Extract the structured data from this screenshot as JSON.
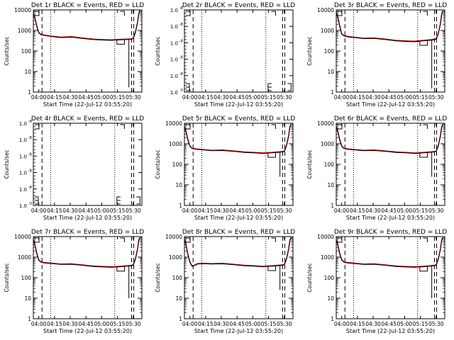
{
  "chart_data": [
    {
      "id": "1r",
      "type": "line",
      "title": "Det 1r BLACK = Events, RED = LLD",
      "xlabel": "Start Time (22-Jul-12 03:55:20)",
      "ylabel": "Counts/sec",
      "yscale": "log",
      "ylim": [
        1,
        10000
      ],
      "xlim": [
        0,
        100
      ],
      "xticks": [
        "04:00",
        "04:15",
        "04:30",
        "04:45",
        "05:00",
        "05:15",
        "05:30"
      ],
      "yticks": [
        "1",
        "10",
        "100",
        "1000",
        "10000"
      ],
      "has_data": true,
      "dip_depth": 1.7,
      "series": [
        {
          "color": "#cc0000",
          "x": [
            0,
            1.5,
            3,
            5,
            7,
            9,
            12,
            18,
            25,
            35,
            45,
            55,
            65,
            72,
            80,
            86,
            90,
            92,
            94,
            96,
            97,
            98
          ],
          "y": [
            7000,
            4000,
            1800,
            800,
            650,
            620,
            580,
            520,
            470,
            500,
            430,
            380,
            360,
            350,
            370,
            380,
            390,
            420,
            800,
            2500,
            6000,
            9500
          ]
        },
        {
          "color": "#000000",
          "x": [
            0,
            1.5,
            3,
            5,
            7,
            9,
            12,
            18,
            25,
            35,
            45,
            55,
            65,
            72,
            80,
            86,
            90,
            92,
            94,
            96,
            97,
            98
          ],
          "y": [
            6500,
            3700,
            1650,
            760,
            620,
            590,
            550,
            500,
            450,
            470,
            410,
            360,
            340,
            330,
            350,
            360,
            370,
            400,
            760,
            2400,
            5700,
            9000
          ]
        }
      ]
    },
    {
      "id": "2r",
      "type": "line",
      "title": "Det 2r BLACK = Events, RED = LLD",
      "xlabel": "Start Time (22-Jul-12 03:55:20)",
      "ylabel": "Counts/sec",
      "yscale": "linear",
      "xlim": [
        0,
        100
      ],
      "xticks": [
        "04:00",
        "04:15",
        "04:30",
        "04:45",
        "05:00",
        "05:15",
        "05:30"
      ],
      "yticks": [
        "1.0",
        "1.0",
        "1.0",
        "1.0",
        "1.0",
        "1.0"
      ],
      "ytick_exponents": [
        "0",
        "-8",
        "-8",
        "-8",
        "-8",
        "-8"
      ],
      "has_data": false
    },
    {
      "id": "3r",
      "type": "line",
      "title": "Det 3r BLACK = Events, RED = LLD",
      "xlabel": "Start Time (22-Jul-12 03:55:20)",
      "ylabel": "Counts/sec",
      "yscale": "log",
      "ylim": [
        1,
        10000
      ],
      "xlim": [
        0,
        100
      ],
      "xticks": [
        "04:00",
        "04:15",
        "04:30",
        "04:45",
        "05:00",
        "05:15",
        "05:30"
      ],
      "yticks": [
        "1",
        "10",
        "100",
        "1000",
        "10000"
      ],
      "has_data": true,
      "dip_depth": 1.5,
      "series": [
        {
          "color": "#cc0000",
          "x": [
            0,
            1.5,
            3,
            5,
            7,
            9,
            12,
            18,
            25,
            35,
            45,
            55,
            65,
            72,
            80,
            86,
            90,
            92,
            94,
            96,
            97,
            98
          ],
          "y": [
            8000,
            4500,
            1900,
            700,
            580,
            540,
            500,
            460,
            420,
            430,
            380,
            330,
            310,
            300,
            330,
            350,
            370,
            400,
            700,
            2200,
            5500,
            9000
          ]
        },
        {
          "color": "#000000",
          "x": [
            0,
            1.5,
            3,
            5,
            7,
            9,
            12,
            18,
            25,
            35,
            45,
            55,
            65,
            72,
            80,
            86,
            90,
            92,
            94,
            96,
            97,
            98
          ],
          "y": [
            7500,
            4200,
            1750,
            660,
            550,
            510,
            470,
            440,
            400,
            410,
            360,
            310,
            290,
            280,
            310,
            330,
            350,
            380,
            660,
            2100,
            5200,
            8500
          ]
        }
      ]
    },
    {
      "id": "4r",
      "type": "line",
      "title": "Det 4r BLACK = Events, RED = LLD",
      "xlabel": "Start Time (22-Jul-12 03:55:20)",
      "ylabel": "Counts/sec",
      "yscale": "linear",
      "xlim": [
        0,
        100
      ],
      "xticks": [
        "04:00",
        "04:15",
        "04:30",
        "04:45",
        "05:00",
        "05:15",
        "05:30"
      ],
      "yticks": [
        "1.0",
        "1.0",
        "1.0",
        "1.0",
        "1.0",
        "1.0"
      ],
      "ytick_exponents": [
        "0",
        "-8",
        "-8",
        "-8",
        "-8",
        "-8"
      ],
      "has_data": false
    },
    {
      "id": "5r",
      "type": "line",
      "title": "Det 5r BLACK = Events, RED = LLD",
      "xlabel": "Start Time (22-Jul-12 03:55:20)",
      "ylabel": "Counts/sec",
      "yscale": "log",
      "ylim": [
        1,
        10000
      ],
      "xlim": [
        0,
        100
      ],
      "xticks": [
        "04:00",
        "04:15",
        "04:30",
        "04:45",
        "05:00",
        "05:15",
        "05:30"
      ],
      "yticks": [
        "1",
        "10",
        "100",
        "1000",
        "10000"
      ],
      "has_data": true,
      "dip_depth": 25,
      "series": [
        {
          "color": "#cc0000",
          "x": [
            0,
            1.5,
            3,
            5,
            7,
            9,
            12,
            18,
            25,
            35,
            45,
            55,
            65,
            72,
            80,
            86,
            90,
            92,
            94,
            96,
            97,
            98
          ],
          "y": [
            7000,
            4000,
            1800,
            800,
            620,
            580,
            560,
            520,
            480,
            500,
            450,
            400,
            380,
            360,
            380,
            400,
            420,
            440,
            800,
            2500,
            6000,
            9000
          ]
        },
        {
          "color": "#000000",
          "x": [
            0,
            1.5,
            3,
            5,
            7,
            9,
            12,
            18,
            25,
            35,
            45,
            55,
            65,
            72,
            80,
            86,
            90,
            92,
            94,
            96,
            97,
            98
          ],
          "y": [
            6500,
            3700,
            1650,
            760,
            590,
            550,
            530,
            500,
            460,
            470,
            430,
            380,
            360,
            340,
            360,
            380,
            400,
            420,
            760,
            2400,
            5700,
            8500
          ]
        }
      ]
    },
    {
      "id": "6r",
      "type": "line",
      "title": "Det 6r BLACK = Events, RED = LLD",
      "xlabel": "Start Time (22-Jul-12 03:55:20)",
      "ylabel": "Counts/sec",
      "yscale": "log",
      "ylim": [
        1,
        10000
      ],
      "xlim": [
        0,
        100
      ],
      "xticks": [
        "04:00",
        "04:15",
        "04:30",
        "04:45",
        "05:00",
        "05:15",
        "05:30"
      ],
      "yticks": [
        "1",
        "10",
        "100",
        "1000",
        "10000"
      ],
      "has_data": true,
      "dip_depth": 25,
      "series": [
        {
          "color": "#cc0000",
          "x": [
            0,
            1.5,
            3,
            5,
            7,
            9,
            12,
            18,
            25,
            35,
            45,
            55,
            65,
            72,
            80,
            86,
            90,
            92,
            94,
            96,
            97,
            98
          ],
          "y": [
            7000,
            4000,
            1800,
            800,
            620,
            580,
            560,
            520,
            480,
            500,
            450,
            400,
            380,
            360,
            380,
            400,
            420,
            440,
            800,
            2500,
            6000,
            9000
          ]
        },
        {
          "color": "#000000",
          "x": [
            0,
            1.5,
            3,
            5,
            7,
            9,
            12,
            18,
            25,
            35,
            45,
            55,
            65,
            72,
            80,
            86,
            90,
            92,
            94,
            96,
            97,
            98
          ],
          "y": [
            6500,
            3700,
            1650,
            760,
            590,
            550,
            530,
            500,
            460,
            470,
            430,
            380,
            360,
            340,
            360,
            380,
            400,
            420,
            760,
            2400,
            5700,
            8500
          ]
        }
      ]
    },
    {
      "id": "7r",
      "type": "line",
      "title": "Det 7r BLACK = Events, RED = LLD",
      "xlabel": "Start Time (22-Jul-12 03:55:20)",
      "ylabel": "Counts/sec",
      "yscale": "log",
      "ylim": [
        1,
        10000
      ],
      "xlim": [
        0,
        100
      ],
      "xticks": [
        "04:00",
        "04:15",
        "04:30",
        "04:45",
        "05:00",
        "05:15",
        "05:30"
      ],
      "yticks": [
        "1",
        "10",
        "100",
        "1000",
        "10000"
      ],
      "has_data": true,
      "dip_depth": 10,
      "series": [
        {
          "color": "#cc0000",
          "x": [
            0,
            1.5,
            3,
            5,
            7,
            9,
            12,
            18,
            25,
            35,
            45,
            55,
            65,
            72,
            80,
            86,
            90,
            92,
            94,
            96,
            97,
            98
          ],
          "y": [
            7500,
            4000,
            1700,
            750,
            600,
            560,
            540,
            500,
            460,
            470,
            420,
            370,
            350,
            340,
            360,
            380,
            400,
            420,
            800,
            2500,
            6000,
            9000
          ]
        },
        {
          "color": "#000000",
          "x": [
            0,
            1.5,
            3,
            5,
            7,
            9,
            12,
            18,
            25,
            35,
            45,
            55,
            65,
            72,
            80,
            86,
            90,
            92,
            94,
            96,
            97,
            98
          ],
          "y": [
            7000,
            3700,
            1550,
            710,
            570,
            530,
            510,
            480,
            440,
            450,
            400,
            350,
            330,
            320,
            340,
            360,
            380,
            400,
            760,
            2400,
            5700,
            8500
          ]
        }
      ]
    },
    {
      "id": "8r",
      "type": "line",
      "title": "Det 8r BLACK = Events, RED = LLD",
      "xlabel": "Start Time (22-Jul-12 03:55:20)",
      "ylabel": "Counts/sec",
      "yscale": "log",
      "ylim": [
        1,
        10000
      ],
      "xlim": [
        0,
        100
      ],
      "xticks": [
        "04:00",
        "04:15",
        "04:30",
        "04:45",
        "05:00",
        "05:15",
        "05:30"
      ],
      "yticks": [
        "1",
        "10",
        "100",
        "1000",
        "10000"
      ],
      "has_data": true,
      "dip_depth": 25,
      "series": [
        {
          "color": "#cc0000",
          "x": [
            0,
            1.5,
            3,
            5,
            7,
            9,
            12,
            18,
            25,
            35,
            45,
            55,
            65,
            72,
            80,
            86,
            90,
            92,
            94,
            96,
            97,
            98
          ],
          "y": [
            8000,
            4000,
            1500,
            600,
            380,
            400,
            480,
            500,
            480,
            500,
            450,
            400,
            380,
            360,
            380,
            400,
            420,
            440,
            800,
            2500,
            6000,
            9000
          ]
        },
        {
          "color": "#000000",
          "x": [
            0,
            1.5,
            3,
            5,
            7,
            9,
            12,
            18,
            25,
            35,
            45,
            55,
            65,
            72,
            80,
            86,
            90,
            92,
            94,
            96,
            97,
            98
          ],
          "y": [
            7500,
            3700,
            1400,
            560,
            360,
            380,
            460,
            480,
            460,
            470,
            430,
            380,
            360,
            340,
            360,
            380,
            400,
            420,
            760,
            2400,
            5700,
            8500
          ]
        }
      ]
    },
    {
      "id": "9r",
      "type": "line",
      "title": "Det 9r BLACK = Events, RED = LLD",
      "xlabel": "Start Time (22-Jul-12 03:55:20)",
      "ylabel": "Counts/sec",
      "yscale": "log",
      "ylim": [
        1,
        10000
      ],
      "xlim": [
        0,
        100
      ],
      "xticks": [
        "04:00",
        "04:15",
        "04:30",
        "04:45",
        "05:00",
        "05:15",
        "05:30"
      ],
      "yticks": [
        "1",
        "10",
        "100",
        "1000",
        "10000"
      ],
      "has_data": true,
      "dip_depth": 10,
      "series": [
        {
          "color": "#cc0000",
          "x": [
            0,
            1.5,
            3,
            5,
            7,
            9,
            12,
            18,
            25,
            35,
            45,
            55,
            65,
            72,
            80,
            86,
            90,
            92,
            94,
            96,
            97,
            98
          ],
          "y": [
            7500,
            4000,
            1700,
            750,
            600,
            560,
            540,
            500,
            460,
            470,
            420,
            370,
            350,
            340,
            360,
            380,
            400,
            420,
            800,
            2500,
            6000,
            9000
          ]
        },
        {
          "color": "#000000",
          "x": [
            0,
            1.5,
            3,
            5,
            7,
            9,
            12,
            18,
            25,
            35,
            45,
            55,
            65,
            72,
            80,
            86,
            90,
            92,
            94,
            96,
            97,
            98
          ],
          "y": [
            7000,
            3700,
            1550,
            710,
            570,
            530,
            510,
            480,
            440,
            450,
            400,
            350,
            330,
            320,
            340,
            360,
            380,
            400,
            760,
            2400,
            5700,
            8500
          ]
        }
      ]
    }
  ]
}
